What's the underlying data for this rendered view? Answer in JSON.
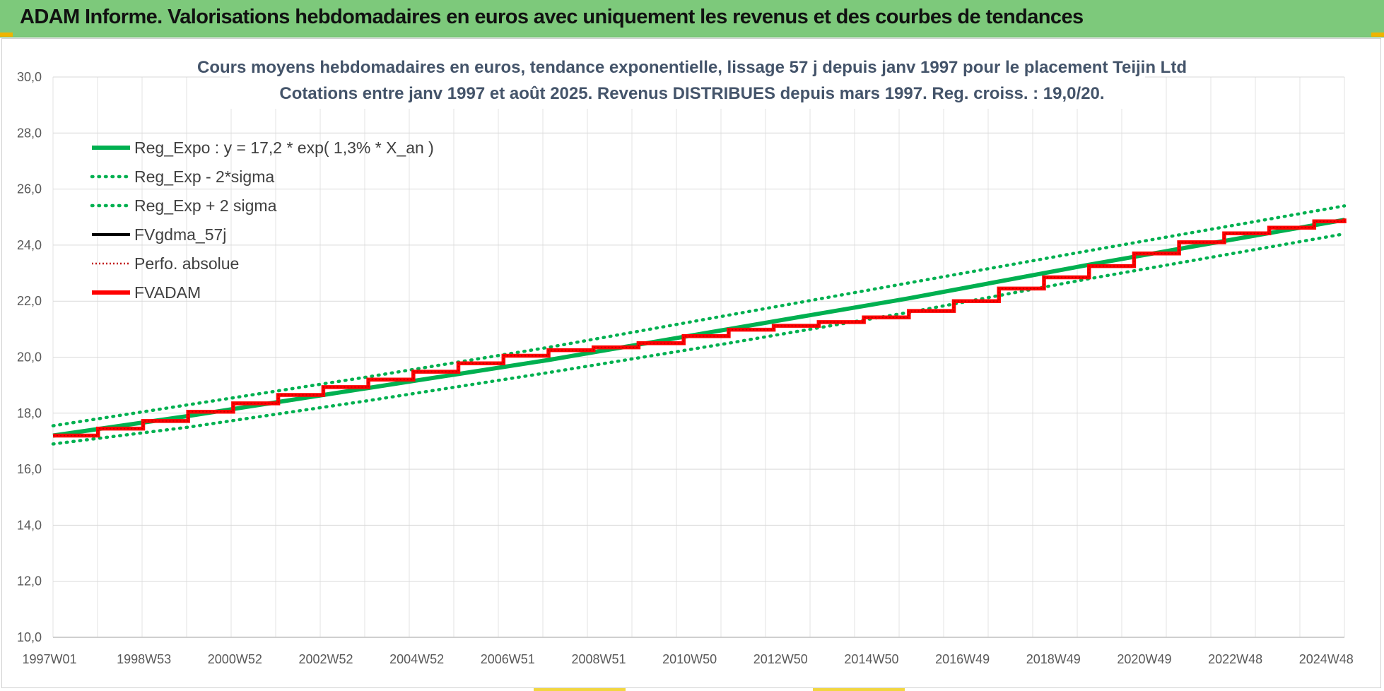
{
  "header": {
    "title": "ADAM Informe. Valorisations hebdomadaires en euros avec uniquement les revenus et des courbes de tendances"
  },
  "colors": {
    "header_bg": "#7dc97b",
    "trend": "#00b050",
    "fv_adam": "#ff0000",
    "perfo": "#c00000",
    "fvgdma": "#000000"
  },
  "chart_data": {
    "type": "line",
    "title_lines": [
      "Cours moyens hebdomadaires en euros, tendance exponentielle, lissage 57 j depuis janv 1997 pour le placement Teijin Ltd",
      "Cotations entre janv 1997 et août 2025. Revenus DISTRIBUES depuis mars 1997. Reg. croiss. : 19,0/20."
    ],
    "ylim": [
      10,
      30
    ],
    "y_ticks": [
      "10,0",
      "12,0",
      "14,0",
      "16,0",
      "18,0",
      "20,0",
      "22,0",
      "24,0",
      "26,0",
      "28,0",
      "30,0"
    ],
    "x_range": [
      1997.0,
      2025.67
    ],
    "x_tick_labels": [
      "1997W01",
      "1998W53",
      "2000W52",
      "2002W52",
      "2004W52",
      "2006W51",
      "2008W51",
      "2010W50",
      "2012W50",
      "2014W50",
      "2016W49",
      "2018W49",
      "2020W49",
      "2022W48",
      "2024W48"
    ],
    "legend_position": "top-left",
    "legend": [
      {
        "name": "Reg_Expo : y = 17,2 * exp( 1,3% *  X_an )",
        "style": "solid-thick",
        "color": "#00b050"
      },
      {
        "name": "Reg_Exp - 2*sigma",
        "style": "dotted",
        "color": "#00b050"
      },
      {
        "name": "Reg_Exp + 2 sigma",
        "style": "dotted",
        "color": "#00b050"
      },
      {
        "name": "FVgdma_57j",
        "style": "solid",
        "color": "#000000"
      },
      {
        "name": "Perfo. absolue",
        "style": "dotted-thin",
        "color": "#c00000"
      },
      {
        "name": "FVADAM",
        "style": "solid-thick",
        "color": "#ff0000"
      }
    ],
    "series": [
      {
        "name": "Reg_Expo : y = 17,2 * exp( 1,3% *  X_an )",
        "x": [
          1997.0,
          2000.0,
          2004.0,
          2008.0,
          2012.0,
          2016.0,
          2020.0,
          2025.67
        ],
        "y": [
          17.2,
          17.9,
          18.9,
          19.9,
          21.0,
          22.1,
          23.3,
          24.9
        ]
      },
      {
        "name": "Reg_Exp - 2*sigma",
        "x": [
          1997.0,
          2000.0,
          2004.0,
          2008.0,
          2012.0,
          2016.0,
          2020.0,
          2025.67
        ],
        "y": [
          16.9,
          17.5,
          18.45,
          19.45,
          20.5,
          21.6,
          22.8,
          24.4
        ]
      },
      {
        "name": "Reg_Exp + 2 sigma",
        "x": [
          1997.0,
          2000.0,
          2004.0,
          2008.0,
          2012.0,
          2016.0,
          2020.0,
          2025.67
        ],
        "y": [
          17.55,
          18.3,
          19.3,
          20.35,
          21.5,
          22.65,
          23.8,
          25.4
        ]
      },
      {
        "name": "FVADAM",
        "x": [
          1997.0,
          1998.0,
          1999.0,
          2000.0,
          2001.0,
          2002.0,
          2003.0,
          2004.0,
          2005.0,
          2006.0,
          2007.0,
          2008.0,
          2009.0,
          2010.0,
          2011.0,
          2012.0,
          2013.0,
          2014.0,
          2015.0,
          2016.0,
          2017.0,
          2018.0,
          2019.0,
          2020.0,
          2021.0,
          2022.0,
          2023.0,
          2024.0,
          2025.0,
          2025.67
        ],
        "y": [
          17.2,
          17.45,
          17.72,
          18.05,
          18.35,
          18.65,
          18.93,
          19.2,
          19.48,
          19.78,
          20.05,
          20.25,
          20.35,
          20.5,
          20.75,
          20.98,
          21.12,
          21.25,
          21.42,
          21.65,
          22.0,
          22.45,
          22.85,
          23.25,
          23.7,
          24.1,
          24.42,
          24.62,
          24.85,
          24.95
        ]
      }
    ]
  }
}
